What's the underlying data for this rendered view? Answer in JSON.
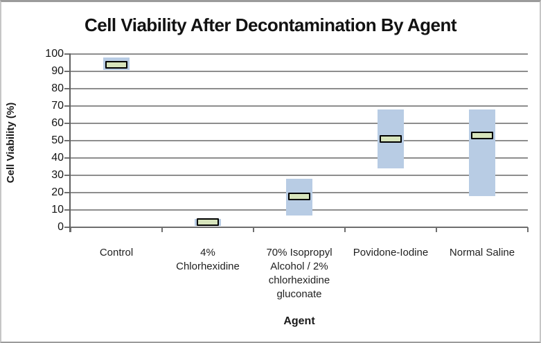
{
  "chart_data": {
    "type": "bar",
    "variant": "floating-range-bars-with-median-markers",
    "title": "Cell Viability After Decontamination By Agent",
    "xlabel": "Agent",
    "ylabel": "Cell Viability (%)",
    "ylim": [
      0,
      100
    ],
    "yticks": [
      0,
      10,
      20,
      30,
      40,
      50,
      60,
      70,
      80,
      90,
      100
    ],
    "grid": true,
    "legend": "none",
    "categories": [
      "Control",
      "4%\nChlorhexidine",
      "70% Isopropyl\nAlcohol / 2%\nchlorhexidine\ngluconate",
      "Povidone-Iodine",
      "Normal Saline"
    ],
    "series": [
      {
        "name": "viability-range",
        "role": "range",
        "color": "#b8cce4",
        "low": [
          91,
          1,
          7,
          34,
          18
        ],
        "high": [
          98,
          5,
          28,
          68,
          68
        ]
      },
      {
        "name": "median",
        "role": "marker",
        "fill": "#d7e4bc",
        "border": "#000000",
        "values": [
          94,
          3,
          18,
          51,
          53
        ]
      }
    ]
  },
  "colors": {
    "background": "#ffffff",
    "gridline": "#8d8d8d",
    "axis": "#5f5f5f",
    "frame_border": "#9b9b9b",
    "text": "#1a1a1a"
  }
}
